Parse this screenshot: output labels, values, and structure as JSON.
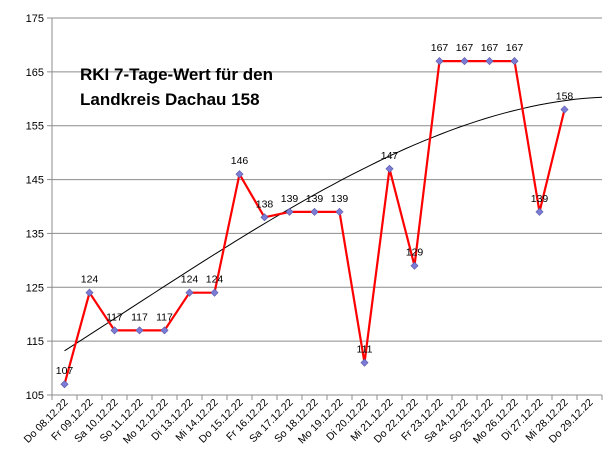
{
  "chart_data": {
    "type": "line",
    "title_lines": [
      "RKI 7-Tage-Wert für den",
      "Landkreis Dachau 158"
    ],
    "xlabel": "",
    "ylabel": "",
    "ylim": [
      105,
      175
    ],
    "yticks": [
      105,
      115,
      125,
      135,
      145,
      155,
      165,
      175
    ],
    "grid": true,
    "legend": "none",
    "categories": [
      "Do 08.12.22",
      "Fr 09.12.22",
      "Sa 10.12.22",
      "So 11.12.22",
      "Mo 12.12.22",
      "Di 13.12.22",
      "Mi 14.12.22",
      "Do 15.12.22",
      "Fr 16.12.22",
      "Sa 17.12.22",
      "So 18.12.22",
      "Mo 19.12.22",
      "Di 20.12.22",
      "Mi 21.12.22",
      "Do 22.12.22",
      "Fr 23.12.22",
      "Sa 24.12.22",
      "So 25.12.22",
      "Mo 26.12.22",
      "Di 27.12.22",
      "Mi 28.12.22",
      "Do 29.12.22"
    ],
    "series": [
      {
        "values": [
          107,
          124,
          117,
          117,
          117,
          124,
          124,
          146,
          138,
          139,
          139,
          139,
          111,
          147,
          129,
          167,
          167,
          167,
          167,
          139,
          158,
          null
        ],
        "color": "#ff0000",
        "marker_color": "#7b7bd6",
        "data_labels": true
      }
    ],
    "trendline": {
      "type": "polynomial",
      "color": "#000000",
      "start": 113.2,
      "end": 160.3
    }
  }
}
